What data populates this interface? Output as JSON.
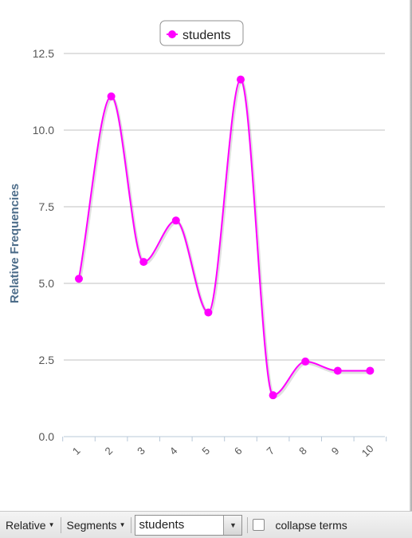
{
  "chart_data": {
    "type": "line",
    "smooth": true,
    "x": [
      "1",
      "2",
      "3",
      "4",
      "5",
      "6",
      "7",
      "8",
      "9",
      "10"
    ],
    "series": [
      {
        "name": "students",
        "color": "#ff00ff",
        "values": [
          5.15,
          11.1,
          5.7,
          7.05,
          4.05,
          11.65,
          1.35,
          2.45,
          2.15,
          2.15
        ]
      }
    ],
    "ylabel": "Relative Frequencies",
    "ylim": [
      0,
      12.5
    ],
    "yticks": [
      "0.0",
      "2.5",
      "5.0",
      "7.5",
      "10.0",
      "12.5"
    ],
    "grid": true,
    "legend_position": "top-center"
  },
  "toolbar": {
    "relative_label": "Relative",
    "segments_label": "Segments",
    "term_value": "students",
    "collapse_label": "collapse terms",
    "collapse_checked": false
  },
  "icons": {
    "dropdown": "caret-down-icon",
    "select_arrow": "chevron-down-icon"
  }
}
